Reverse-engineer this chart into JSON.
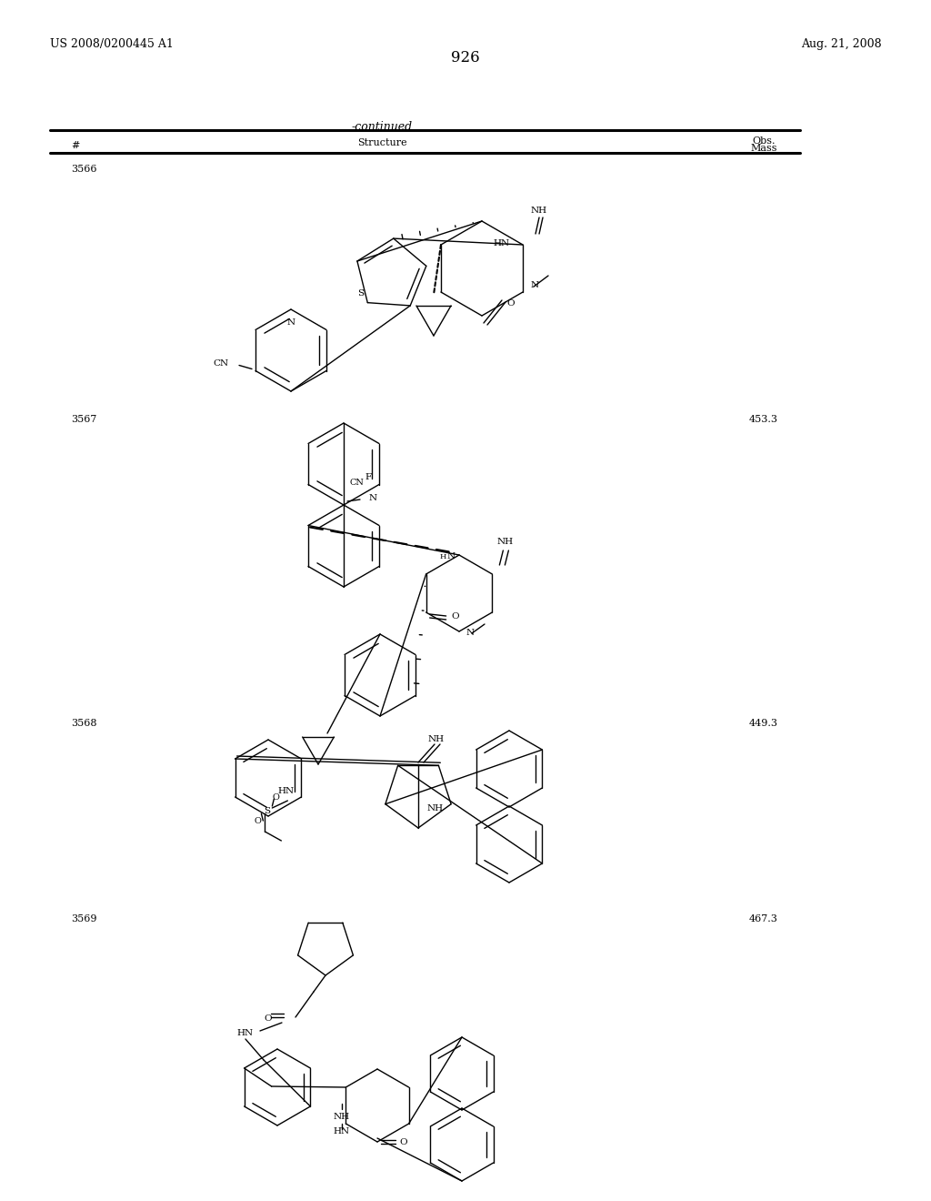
{
  "background_color": "#ffffff",
  "header_left": "US 2008/0200445 A1",
  "header_right": "Aug. 21, 2008",
  "page_number": "926",
  "table_label": "-continued",
  "col_num": "#",
  "col_struct": "Structure",
  "col_obs": "Obs.",
  "col_mass": "Mass",
  "rows": [
    {
      "number": "3566",
      "mass": ""
    },
    {
      "number": "3567",
      "mass": "453.3"
    },
    {
      "number": "3568",
      "mass": "449.3"
    },
    {
      "number": "3569",
      "mass": "467.3"
    }
  ]
}
